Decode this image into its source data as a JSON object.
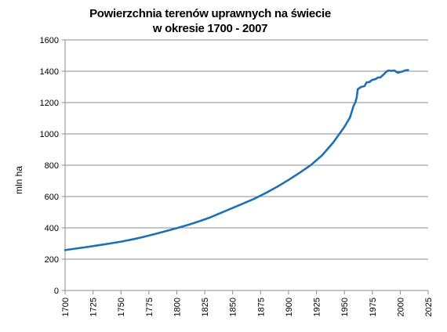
{
  "chart_data": {
    "type": "line",
    "title": [
      "Powierzchnia terenów uprawnych na świecie",
      "w okresie 1700 - 2007"
    ],
    "xlabel": "",
    "ylabel": "mln ha",
    "xlim": [
      1700,
      2025
    ],
    "ylim": [
      0,
      1600
    ],
    "xticks": [
      1700,
      1725,
      1750,
      1775,
      1800,
      1825,
      1850,
      1875,
      1900,
      1925,
      1950,
      1975,
      2000,
      2025
    ],
    "yticks": [
      0,
      200,
      400,
      600,
      800,
      1000,
      1200,
      1400,
      1600
    ],
    "grid": "horizontal",
    "legend": "none",
    "line_color": "#1f6fb5",
    "series": [
      {
        "x": [
          1700,
          1710,
          1720,
          1730,
          1740,
          1750,
          1760,
          1770,
          1780,
          1790,
          1800,
          1810,
          1820,
          1830,
          1840,
          1850,
          1860,
          1870,
          1880,
          1890,
          1900,
          1910,
          1920,
          1930,
          1940,
          1950,
          1955,
          1958,
          1960,
          1961,
          1962,
          1965,
          1968,
          1970,
          1972,
          1975,
          1978,
          1980,
          1982,
          1985,
          1988,
          1990,
          1992,
          1995,
          1996,
          1998,
          2000,
          2002,
          2004,
          2007
        ],
        "y": [
          258,
          268,
          278,
          289,
          300,
          312,
          326,
          342,
          360,
          379,
          398,
          419,
          442,
          467,
          497,
          527,
          557,
          588,
          624,
          663,
          706,
          752,
          801,
          863,
          945,
          1045,
          1105,
          1175,
          1205,
          1232,
          1285,
          1300,
          1305,
          1330,
          1330,
          1345,
          1350,
          1360,
          1360,
          1378,
          1400,
          1405,
          1402,
          1405,
          1398,
          1390,
          1395,
          1398,
          1405,
          1408
        ]
      }
    ]
  }
}
